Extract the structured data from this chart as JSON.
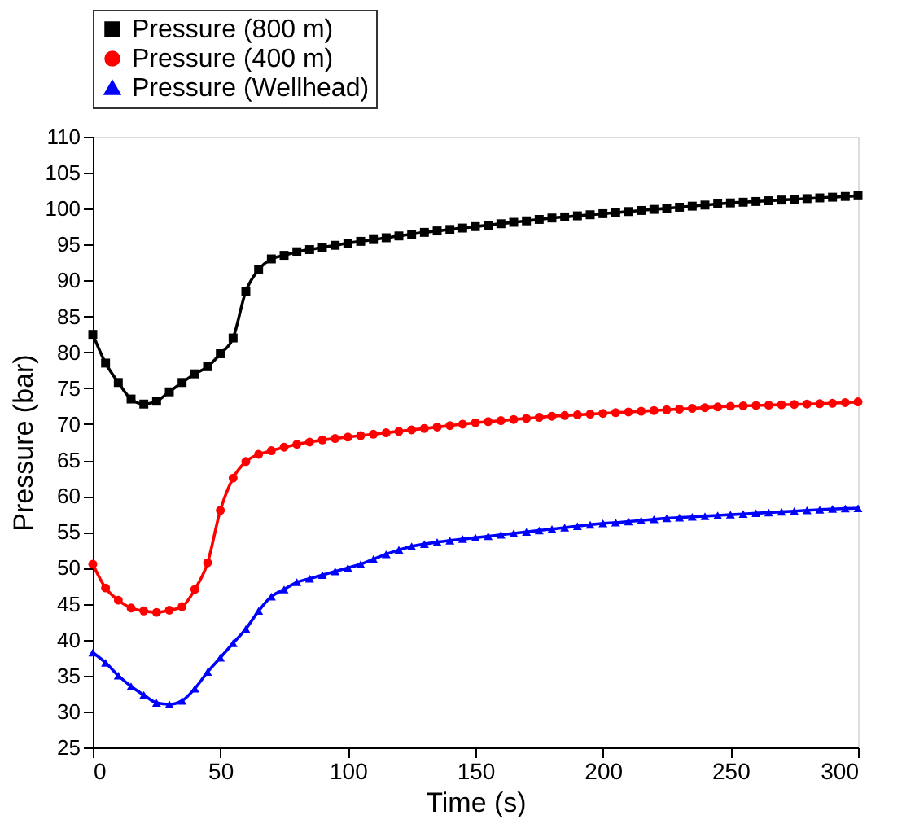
{
  "chart_data": {
    "type": "line",
    "xlabel": "Time (s)",
    "ylabel": "Pressure (bar)",
    "x": [
      0,
      5,
      10,
      15,
      20,
      25,
      30,
      35,
      40,
      45,
      50,
      55,
      60,
      65,
      70,
      75,
      80,
      85,
      90,
      95,
      100,
      105,
      110,
      115,
      120,
      125,
      130,
      135,
      140,
      145,
      150,
      155,
      160,
      165,
      170,
      175,
      180,
      185,
      190,
      195,
      200,
      205,
      210,
      215,
      220,
      225,
      230,
      235,
      240,
      245,
      250,
      255,
      260,
      265,
      270,
      275,
      280,
      285,
      290,
      295,
      300
    ],
    "series": [
      {
        "name": "Pressure (800 m)",
        "color": "#000000",
        "marker": "square",
        "values": [
          82.5,
          78.5,
          75.8,
          73.5,
          72.8,
          73.2,
          74.5,
          75.8,
          77,
          78,
          79.8,
          82,
          88.5,
          91.5,
          93,
          93.5,
          94,
          94.3,
          94.6,
          94.9,
          95.2,
          95.45,
          95.7,
          95.95,
          96.2,
          96.45,
          96.7,
          96.9,
          97.1,
          97.3,
          97.5,
          97.7,
          97.9,
          98.1,
          98.3,
          98.5,
          98.7,
          98.85,
          99.0,
          99.15,
          99.3,
          99.45,
          99.6,
          99.75,
          99.9,
          100.05,
          100.2,
          100.35,
          100.5,
          100.65,
          100.8,
          100.9,
          101.0,
          101.1,
          101.2,
          101.3,
          101.4,
          101.5,
          101.6,
          101.7,
          101.8
        ]
      },
      {
        "name": "Pressure (400 m)",
        "color": "#ff0000",
        "marker": "circle",
        "values": [
          50.5,
          47.2,
          45.5,
          44.4,
          44,
          43.8,
          44.1,
          44.6,
          47,
          50.7,
          58,
          62.5,
          64.8,
          65.8,
          66.3,
          66.8,
          67.2,
          67.5,
          67.8,
          68,
          68.2,
          68.4,
          68.6,
          68.8,
          69,
          69.2,
          69.4,
          69.6,
          69.8,
          70,
          70.2,
          70.35,
          70.5,
          70.65,
          70.8,
          70.95,
          71.1,
          71.2,
          71.3,
          71.4,
          71.5,
          71.6,
          71.7,
          71.8,
          71.9,
          72,
          72.1,
          72.2,
          72.3,
          72.4,
          72.5,
          72.55,
          72.6,
          72.65,
          72.7,
          72.75,
          72.8,
          72.85,
          72.9,
          73,
          73.1
        ]
      },
      {
        "name": "Pressure (Wellhead)",
        "color": "#0000ff",
        "marker": "triangle",
        "values": [
          38.2,
          36.8,
          35,
          33.5,
          32.3,
          31.2,
          31,
          31.5,
          33.2,
          35.5,
          37.5,
          39.5,
          41.5,
          44,
          46,
          47,
          48,
          48.5,
          49,
          49.5,
          50,
          50.5,
          51.2,
          51.9,
          52.5,
          53,
          53.3,
          53.6,
          53.8,
          54,
          54.2,
          54.4,
          54.6,
          54.8,
          55,
          55.2,
          55.4,
          55.6,
          55.8,
          56,
          56.2,
          56.3,
          56.45,
          56.6,
          56.75,
          56.9,
          57,
          57.1,
          57.2,
          57.3,
          57.4,
          57.5,
          57.6,
          57.7,
          57.8,
          57.9,
          58,
          58.1,
          58.2,
          58.25,
          58.3
        ]
      }
    ],
    "xlim": [
      0,
      300
    ],
    "xticks": [
      0,
      50,
      100,
      150,
      200,
      250,
      300
    ],
    "ylim": [
      25,
      110
    ],
    "yticks": [
      25,
      30,
      35,
      40,
      45,
      50,
      55,
      60,
      65,
      70,
      75,
      80,
      85,
      90,
      95,
      100,
      105,
      110
    ],
    "grid": false,
    "legend": "top",
    "line_style": "solid"
  }
}
